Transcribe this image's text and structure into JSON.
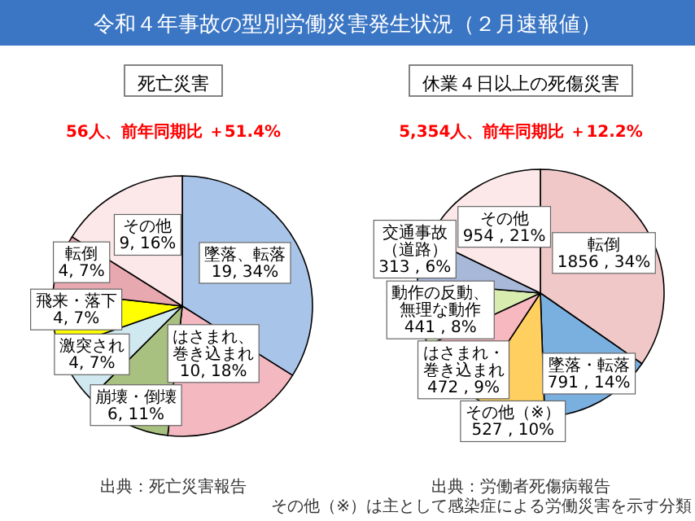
{
  "chart_data": [
    {
      "type": "other",
      "title": "令和４年事故の型別労働災害発生状況（２月速報値）"
    },
    {
      "type": "pie",
      "title": "死亡災害",
      "subtitle": "56人、前年同期比 ＋51.4%",
      "categories": [
        "墜落、転落",
        "はさまれ、巻き込まれ",
        "崩壊・倒壊",
        "激突され",
        "飛来・落下",
        "転倒",
        "その他"
      ],
      "values": [
        19,
        10,
        6,
        4,
        4,
        4,
        9
      ],
      "value_labels": [
        "19, 34%",
        "10, 18%",
        "6, 11%",
        "4, 7%",
        "4, 7%",
        "4, 7%",
        "9, 16%"
      ],
      "colors": [
        "#a8c4e8",
        "#f4b8c0",
        "#a8c080",
        "#d0e8f0",
        "#ffff00",
        "#e8a8b0",
        "#fce8e8"
      ],
      "annotations": [
        "出典：死亡災害報告"
      ]
    },
    {
      "type": "pie",
      "title": "休業４日以上の死傷災害",
      "subtitle": "5,354人、前年同期比 ＋12.2%",
      "categories": [
        "転倒",
        "墜落・転落",
        "その他（※）",
        "はさまれ・巻き込まれ",
        "動作の反動、無理な動作",
        "交通事故（道路）",
        "その他"
      ],
      "values": [
        1856,
        791,
        527,
        472,
        441,
        313,
        954
      ],
      "value_labels": [
        "1856 , 34%",
        "791 , 14%",
        "527 , 10%",
        "472 , 9%",
        "441 , 8%",
        "313 , 6%",
        "954 , 21%"
      ],
      "colors": [
        "#f0c8c8",
        "#7ab0e0",
        "#ffd060",
        "#f8b8c0",
        "#d8ecb0",
        "#a8b8d8",
        "#fce8e8"
      ],
      "annotations": [
        "出典：労働者死傷病報告",
        "その他（※）は主として感染症による労働災害を示す分類"
      ]
    }
  ]
}
